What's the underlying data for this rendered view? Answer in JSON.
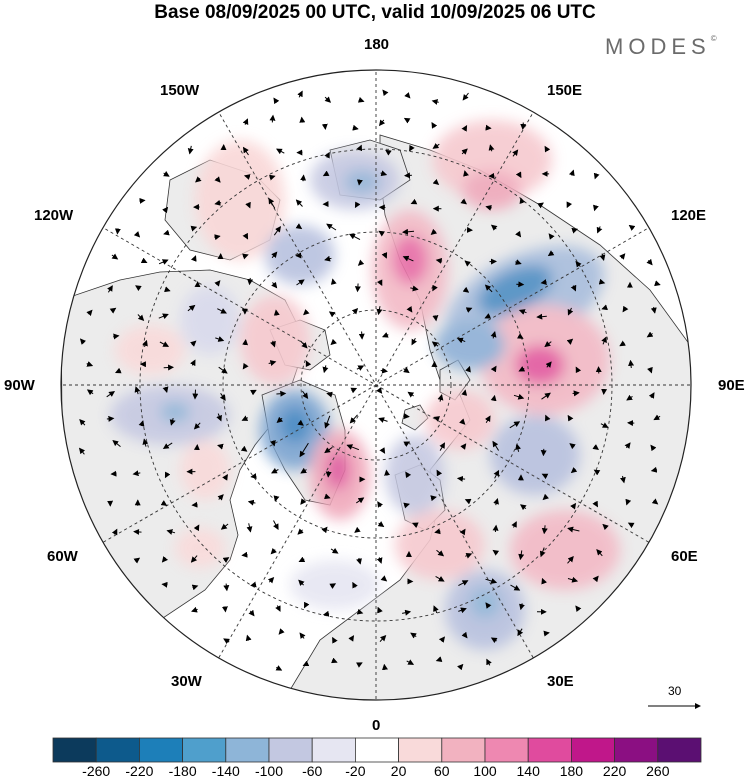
{
  "title": "Base 08/09/2025 00 UTC, valid 10/09/2025 06 UTC",
  "brand": "MODES",
  "brand_mark": "©",
  "longitude_labels": {
    "top": "180",
    "bottom": "0",
    "left": "90W",
    "right": "90E",
    "upper_left_1": "150W",
    "upper_left_2": "120W",
    "upper_right_1": "150E",
    "upper_right_2": "120E",
    "lower_left_1": "60W",
    "lower_left_2": "30W",
    "lower_right_1": "60E",
    "lower_right_2": "30E"
  },
  "reference_vector": "30",
  "colorbar": {
    "labels": [
      "-260",
      "-220",
      "-180",
      "-140",
      "-100",
      "-60",
      "-20",
      "20",
      "60",
      "100",
      "140",
      "180",
      "220",
      "260"
    ],
    "colors": [
      "#0c3a5c",
      "#0d5a8c",
      "#1d7fb9",
      "#4f9fcc",
      "#8eb5d8",
      "#c3c8e1",
      "#e6e6f2",
      "#ffffff",
      "#f9dada",
      "#f2b2c0",
      "#ee88b1",
      "#e04b9e",
      "#c0178a",
      "#8b0f82",
      "#5b0f72"
    ]
  },
  "colors": {
    "land": "#ececec",
    "ocean": "#ffffff",
    "coast": "#333333",
    "grid": "#333333"
  }
}
